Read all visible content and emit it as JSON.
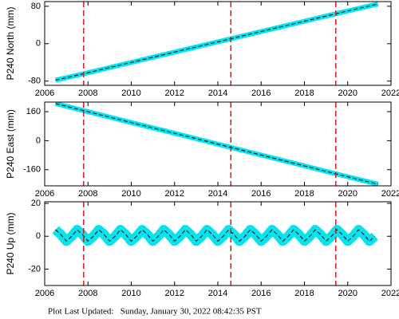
{
  "chart_data": [
    {
      "type": "line",
      "ylabel": "P240 North (mm)",
      "x": [
        2006.5,
        2008,
        2010,
        2012,
        2014,
        2016,
        2018,
        2020,
        2021.4
      ],
      "series": [
        {
          "color": "#00e5ee",
          "values": [
            -78,
            -62,
            -40,
            -18,
            4,
            26,
            48,
            70,
            85
          ]
        },
        {
          "color": "#000000",
          "values": [
            -78,
            -62,
            -40,
            -18,
            4,
            26,
            48,
            70,
            85
          ]
        }
      ],
      "events": [
        2007.8,
        2014.6,
        2019.45
      ],
      "event_color": "#e8141b",
      "xlim": [
        2006,
        2022
      ],
      "xticks": [
        2006,
        2008,
        2010,
        2012,
        2014,
        2016,
        2018,
        2020,
        2022
      ],
      "ylim": [
        -89,
        90
      ],
      "yticks": [
        -80,
        0,
        80
      ]
    },
    {
      "type": "line",
      "ylabel": "P240 East (mm)",
      "x": [
        2006.5,
        2008,
        2010,
        2012,
        2014,
        2016,
        2018,
        2020,
        2021.4
      ],
      "series": [
        {
          "color": "#00e5ee",
          "values": [
            205,
            160,
            100,
            41,
            -19,
            -79,
            -139,
            -199,
            -240
          ]
        },
        {
          "color": "#000000",
          "values": [
            205,
            160,
            100,
            41,
            -19,
            -79,
            -139,
            -199,
            -240
          ]
        }
      ],
      "events": [
        2007.8,
        2014.6,
        2019.45
      ],
      "event_color": "#e8141b",
      "xlim": [
        2006,
        2022
      ],
      "xticks": [
        2006,
        2008,
        2010,
        2012,
        2014,
        2016,
        2018,
        2020,
        2022
      ],
      "ylim": [
        -249,
        213
      ],
      "yticks": [
        -160,
        0,
        160
      ]
    },
    {
      "type": "line",
      "ylabel": "P240 Up (mm)",
      "x": [
        2006.5,
        2006.75,
        2007,
        2007.25,
        2007.5,
        2007.75,
        2008,
        2008.25,
        2008.5,
        2008.75,
        2009,
        2009.25,
        2009.5,
        2009.75,
        2010,
        2010.25,
        2010.5,
        2010.75,
        2011,
        2011.25,
        2011.5,
        2011.75,
        2012,
        2012.25,
        2012.5,
        2012.75,
        2013,
        2013.25,
        2013.5,
        2013.75,
        2014,
        2014.25,
        2014.5,
        2014.75,
        2015,
        2015.25,
        2015.5,
        2015.75,
        2016,
        2016.25,
        2016.5,
        2016.75,
        2017,
        2017.25,
        2017.5,
        2017.75,
        2018,
        2018.25,
        2018.5,
        2018.75,
        2019,
        2019.25,
        2019.5,
        2019.75,
        2020,
        2020.25,
        2020.5,
        2020.75,
        2021,
        2021.25
      ],
      "series": [
        {
          "color": "#00e5ee",
          "values": [
            4,
            1,
            -3,
            0,
            4,
            1,
            -3,
            0,
            4,
            1,
            -3,
            0,
            4,
            1,
            -3,
            0,
            4,
            1,
            -3,
            0,
            4,
            1,
            -3,
            0,
            4,
            1,
            -3,
            0,
            4,
            1,
            -3,
            0,
            4,
            1,
            -3,
            0,
            4,
            1,
            -3,
            0,
            4,
            1,
            -3,
            0,
            4,
            1,
            -3,
            0,
            4,
            1,
            -3,
            0,
            4,
            1,
            -3,
            0,
            4,
            1,
            -3,
            0
          ]
        },
        {
          "color": "#000000",
          "values": [
            4,
            1,
            -3,
            0,
            4,
            1,
            -3,
            0,
            4,
            1,
            -3,
            0,
            4,
            1,
            -3,
            0,
            4,
            1,
            -3,
            0,
            4,
            1,
            -3,
            0,
            4,
            1,
            -3,
            0,
            4,
            1,
            -3,
            0,
            4,
            1,
            -3,
            0,
            4,
            1,
            -3,
            0,
            4,
            1,
            -3,
            0,
            4,
            1,
            -3,
            0,
            4,
            1,
            -3,
            0,
            4,
            1,
            -3,
            0,
            4,
            1,
            -3,
            0
          ]
        }
      ],
      "events": [
        2007.8,
        2014.6,
        2019.45
      ],
      "event_color": "#e8141b",
      "xlim": [
        2006,
        2022
      ],
      "xticks": [
        2006,
        2008,
        2010,
        2012,
        2014,
        2016,
        2018,
        2020,
        2022
      ],
      "ylim": [
        -30,
        21
      ],
      "yticks": [
        -20,
        0,
        20
      ]
    }
  ],
  "footer": "Plot Last Updated:   Sunday, January 30, 2022 08:42:35 PST"
}
